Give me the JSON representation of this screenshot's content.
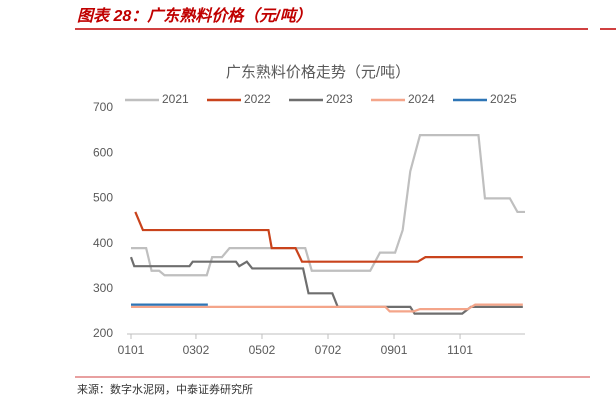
{
  "header": {
    "title": "图表 28：广东熟料价格（元/吨）"
  },
  "source": "来源：数字水泥网，中泰证券研究所",
  "chart_data": {
    "type": "line",
    "title": "广东熟料价格走势（元/吨）",
    "xlim": [
      1,
      365
    ],
    "xticks": [
      {
        "value": 1,
        "label": "0101"
      },
      {
        "value": 61,
        "label": "0302"
      },
      {
        "value": 122,
        "label": "0502"
      },
      {
        "value": 183,
        "label": "0702"
      },
      {
        "value": 244,
        "label": "0901"
      },
      {
        "value": 305,
        "label": "1101"
      }
    ],
    "ylim": [
      200,
      700
    ],
    "yticks": [
      200,
      300,
      400,
      500,
      600,
      700
    ],
    "grid": false,
    "series": [
      {
        "name": "2021",
        "color": "#bfbfbf",
        "x": [
          1,
          15,
          20,
          27,
          32,
          71,
          76,
          85,
          92,
          162,
          168,
          222,
          231,
          245,
          252,
          259,
          268,
          322,
          328,
          351,
          358,
          365
        ],
        "values": [
          390,
          390,
          340,
          340,
          330,
          330,
          370,
          370,
          390,
          390,
          340,
          340,
          380,
          380,
          430,
          560,
          640,
          640,
          500,
          500,
          470,
          470
        ]
      },
      {
        "name": "2022",
        "color": "#c9431c",
        "x": [
          5,
          12,
          128,
          131,
          153,
          159,
          266,
          273,
          363
        ],
        "values": [
          470,
          430,
          430,
          390,
          390,
          360,
          360,
          370,
          370
        ]
      },
      {
        "name": "2023",
        "color": "#6e6e6e",
        "x": [
          1,
          4,
          55,
          58,
          98,
          101,
          108,
          113,
          160,
          165,
          187,
          192,
          259,
          263,
          307,
          315,
          363
        ],
        "values": [
          370,
          350,
          350,
          360,
          360,
          350,
          360,
          345,
          345,
          290,
          290,
          260,
          260,
          245,
          245,
          260,
          260
        ]
      },
      {
        "name": "2024",
        "color": "#f4a58a",
        "x": [
          1,
          236,
          240,
          262,
          268,
          312,
          319,
          363
        ],
        "values": [
          260,
          260,
          250,
          250,
          255,
          255,
          265,
          265
        ]
      },
      {
        "name": "2025",
        "color": "#2e75b6",
        "x": [
          1,
          72
        ],
        "values": [
          265,
          265
        ]
      }
    ]
  }
}
